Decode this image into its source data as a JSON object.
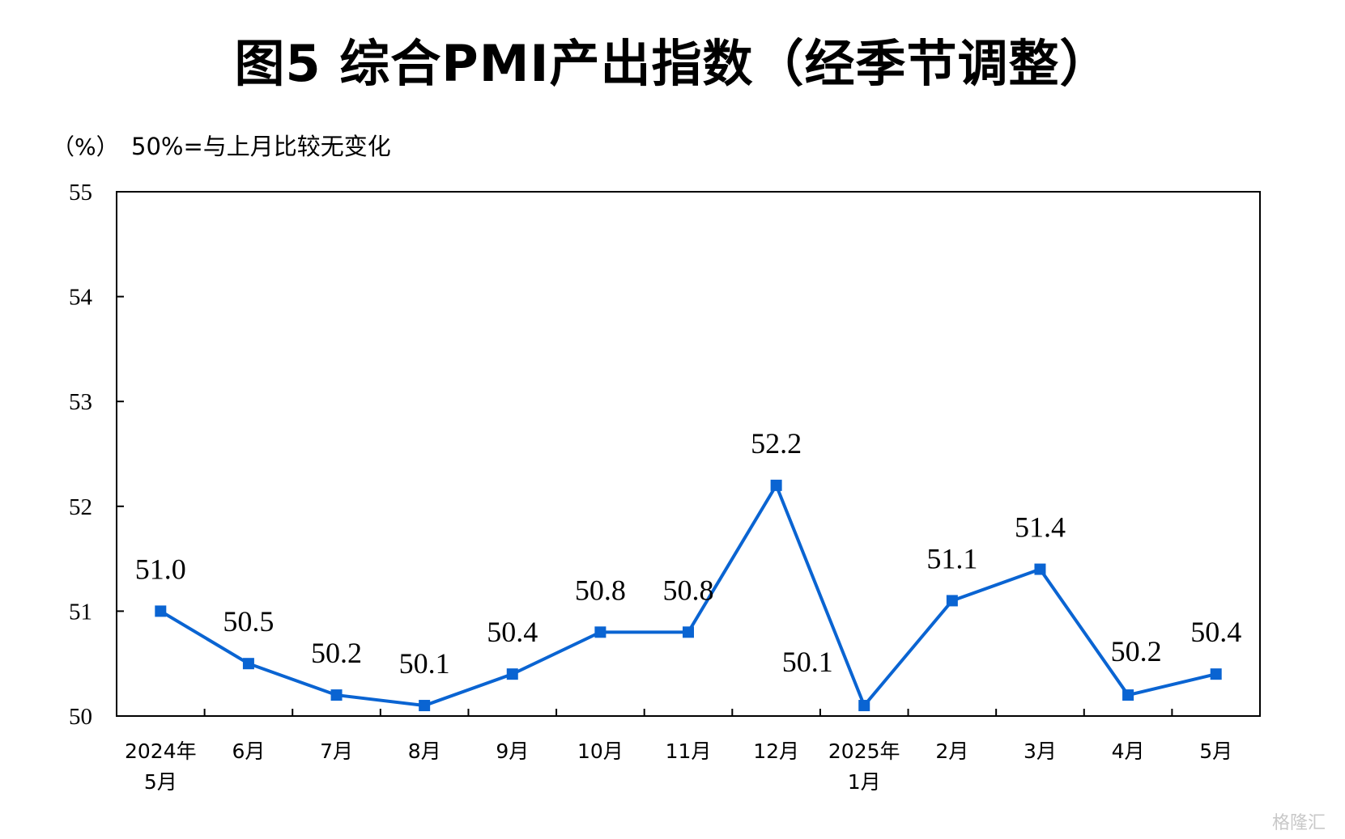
{
  "title": "图5  综合PMI产出指数（经季节调整）",
  "unit_label": "（%）",
  "note": "50%=与上月比较无变化",
  "watermark": "格隆汇",
  "colors": {
    "series": "#0a64d2",
    "axis": "#000000"
  },
  "chart_data": {
    "type": "line",
    "title": "图5  综合PMI产出指数（经季节调整）",
    "ylabel": "（%）",
    "ylim": [
      50,
      55
    ],
    "yticks": [
      "50",
      "51",
      "52",
      "53",
      "54",
      "55"
    ],
    "categories": [
      [
        "2024年",
        "5月"
      ],
      [
        "6月"
      ],
      [
        "7月"
      ],
      [
        "8月"
      ],
      [
        "9月"
      ],
      [
        "10月"
      ],
      [
        "11月"
      ],
      [
        "12月"
      ],
      [
        "2025年",
        "1月"
      ],
      [
        "2月"
      ],
      [
        "3月"
      ],
      [
        "4月"
      ],
      [
        "5月"
      ]
    ],
    "series": [
      {
        "name": "综合PMI产出指数",
        "values": [
          51.0,
          50.5,
          50.2,
          50.1,
          50.4,
          50.8,
          50.8,
          52.2,
          50.1,
          51.1,
          51.4,
          50.2,
          50.4
        ],
        "labels": [
          "51.0",
          "50.5",
          "50.2",
          "50.1",
          "50.4",
          "50.8",
          "50.8",
          "52.2",
          "50.1",
          "51.1",
          "51.4",
          "50.2",
          "50.4"
        ]
      }
    ]
  }
}
